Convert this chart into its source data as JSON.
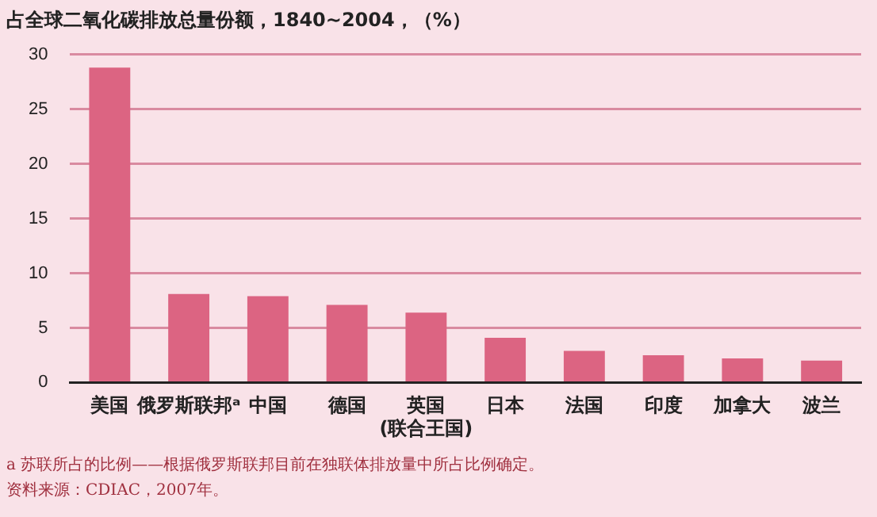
{
  "chart_data": {
    "type": "bar",
    "title": "占全球二氧化碳排放总量份额，1840~2004，（%）",
    "categories": [
      "美国",
      "俄罗斯联邦ᵃ",
      "中国",
      "德国",
      "英国\n(联合王国)",
      "日本",
      "法国",
      "印度",
      "加拿大",
      "波兰"
    ],
    "values": [
      28.8,
      8.1,
      7.9,
      7.1,
      6.4,
      4.1,
      2.9,
      2.5,
      2.2,
      2.0
    ],
    "color": "#dc6482",
    "ylim": [
      0,
      30
    ],
    "yticks": [
      0,
      5,
      10,
      15,
      20,
      25,
      30
    ],
    "grid": "y",
    "legend": false,
    "annotations": [
      "a 苏联所占的比例——根据俄罗斯联邦目前在独联体排放量中所占比例确定。",
      "资料来源：CDIAC，2007年。"
    ]
  }
}
